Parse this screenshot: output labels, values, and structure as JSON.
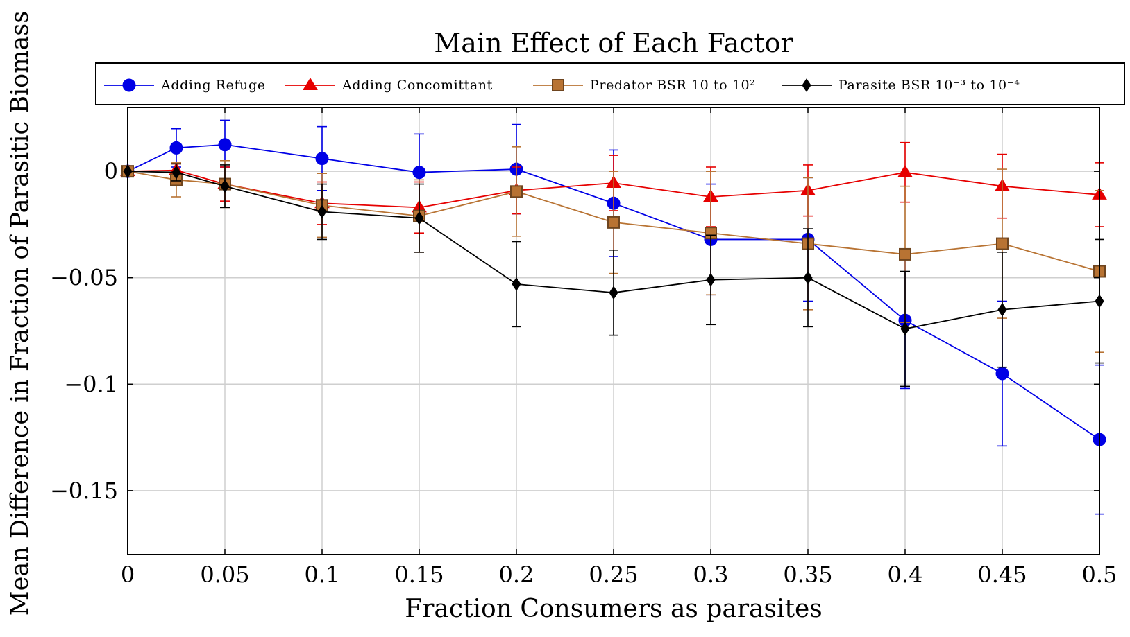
{
  "chart_data": {
    "type": "line",
    "title": "Main Effect of Each Factor",
    "xlabel": "Fraction Consumers as parasites",
    "ylabel": "Mean Difference in Fraction of Parasitic Biomass",
    "xlim": [
      0,
      0.5
    ],
    "ylim": [
      -0.18,
      0.03
    ],
    "xticks": [
      0,
      0.05,
      0.1,
      0.15,
      0.2,
      0.25,
      0.3,
      0.35,
      0.4,
      0.45,
      0.5
    ],
    "xtick_labels": [
      "0",
      "0.05",
      "0.1",
      "0.15",
      "0.2",
      "0.25",
      "0.3",
      "0.35",
      "0.4",
      "0.45",
      "0.5"
    ],
    "yticks": [
      0,
      -0.05,
      -0.1,
      -0.15
    ],
    "ytick_labels": [
      "0",
      "−0.05",
      "−0.1",
      "−0.15"
    ],
    "grid": true,
    "legend_position": "top",
    "x": [
      0,
      0.025,
      0.05,
      0.1,
      0.15,
      0.2,
      0.25,
      0.3,
      0.35,
      0.4,
      0.45,
      0.5
    ],
    "series": [
      {
        "name": "Adding Refuge",
        "color": "#0000e6",
        "marker": "circle",
        "values": [
          0,
          0.011,
          0.0125,
          0.006,
          -0.0005,
          0.001,
          -0.015,
          -0.032,
          -0.032,
          -0.07,
          -0.095,
          -0.126
        ],
        "err_low": [
          0,
          0.009,
          0.0105,
          0.015,
          0.018,
          0.021,
          0.025,
          0.026,
          0.029,
          0.032,
          0.034,
          0.035
        ],
        "err_high": [
          0,
          0.009,
          0.0115,
          0.015,
          0.018,
          0.021,
          0.025,
          0.026,
          0.029,
          0.032,
          0.034,
          0.035
        ]
      },
      {
        "name": "Adding Concomittant",
        "color": "#e60000",
        "marker": "triangle",
        "values": [
          0,
          0.0005,
          -0.006,
          -0.015,
          -0.017,
          -0.009,
          -0.0055,
          -0.012,
          -0.009,
          -0.0005,
          -0.007,
          -0.011
        ],
        "err_low": [
          0,
          0.003,
          0.008,
          0.01,
          0.012,
          0.011,
          0.013,
          0.014,
          0.012,
          0.014,
          0.015,
          0.015
        ],
        "err_high": [
          0,
          0.003,
          0.008,
          0.01,
          0.012,
          0.011,
          0.013,
          0.014,
          0.012,
          0.014,
          0.015,
          0.015
        ]
      },
      {
        "name": "Predator BSR 10 to 10²",
        "color": "#b87333",
        "marker": "square",
        "values": [
          0,
          -0.004,
          -0.006,
          -0.016,
          -0.021,
          -0.0095,
          -0.024,
          -0.029,
          -0.034,
          -0.039,
          -0.034,
          -0.047
        ],
        "err_low": [
          0,
          0.008,
          0.011,
          0.015,
          0.017,
          0.021,
          0.024,
          0.029,
          0.031,
          0.032,
          0.035,
          0.038
        ],
        "err_high": [
          0,
          0.008,
          0.011,
          0.015,
          0.017,
          0.021,
          0.024,
          0.029,
          0.031,
          0.032,
          0.035,
          0.038
        ]
      },
      {
        "name": "Parasite BSR 10⁻³ to 10⁻⁴",
        "color": "#000000",
        "marker": "diamond",
        "values": [
          0,
          -0.0005,
          -0.007,
          -0.019,
          -0.022,
          -0.053,
          -0.057,
          -0.051,
          -0.05,
          -0.074,
          -0.065,
          -0.061
        ],
        "err_low": [
          0,
          0.004,
          0.01,
          0.013,
          0.016,
          0.02,
          0.02,
          0.021,
          0.023,
          0.027,
          0.027,
          0.029
        ],
        "err_high": [
          0,
          0.004,
          0.01,
          0.013,
          0.016,
          0.02,
          0.02,
          0.021,
          0.023,
          0.027,
          0.027,
          0.029
        ]
      }
    ]
  }
}
